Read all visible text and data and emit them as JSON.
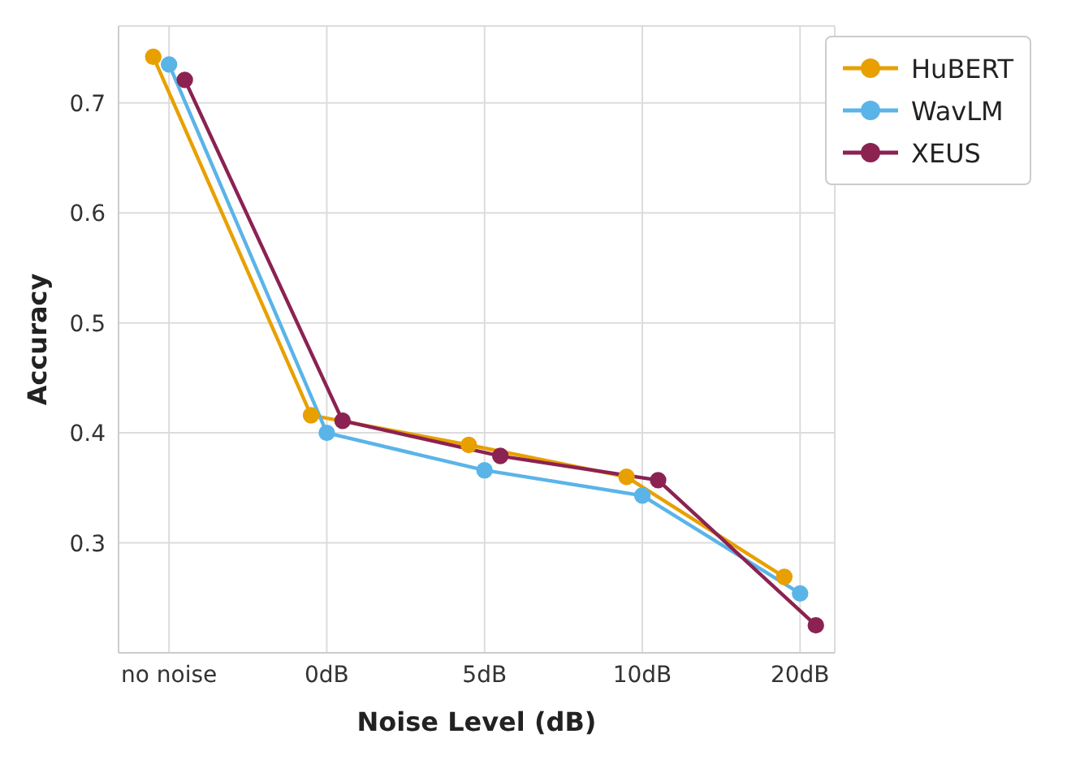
{
  "chart_data": {
    "type": "line",
    "xlabel": "Noise Level (dB)",
    "ylabel": "Accuracy",
    "categories": [
      "no noise",
      "0dB",
      "5dB",
      "10dB",
      "20dB"
    ],
    "series": [
      {
        "name": "HuBERT",
        "color": "#e8a000",
        "values": [
          0.742,
          0.416,
          0.389,
          0.36,
          0.269
        ]
      },
      {
        "name": "WavLM",
        "color": "#5ab4e8",
        "values": [
          0.735,
          0.4,
          0.366,
          0.343,
          0.254
        ]
      },
      {
        "name": "XEUS",
        "color": "#8b2252",
        "values": [
          0.721,
          0.411,
          0.379,
          0.357,
          0.225
        ]
      }
    ],
    "ylim": [
      0.2,
      0.77
    ],
    "yticks": [
      0.3,
      0.4,
      0.5,
      0.6,
      0.7
    ],
    "grid": true,
    "legend": "top right",
    "marker": "circle",
    "line_style": "solid"
  }
}
